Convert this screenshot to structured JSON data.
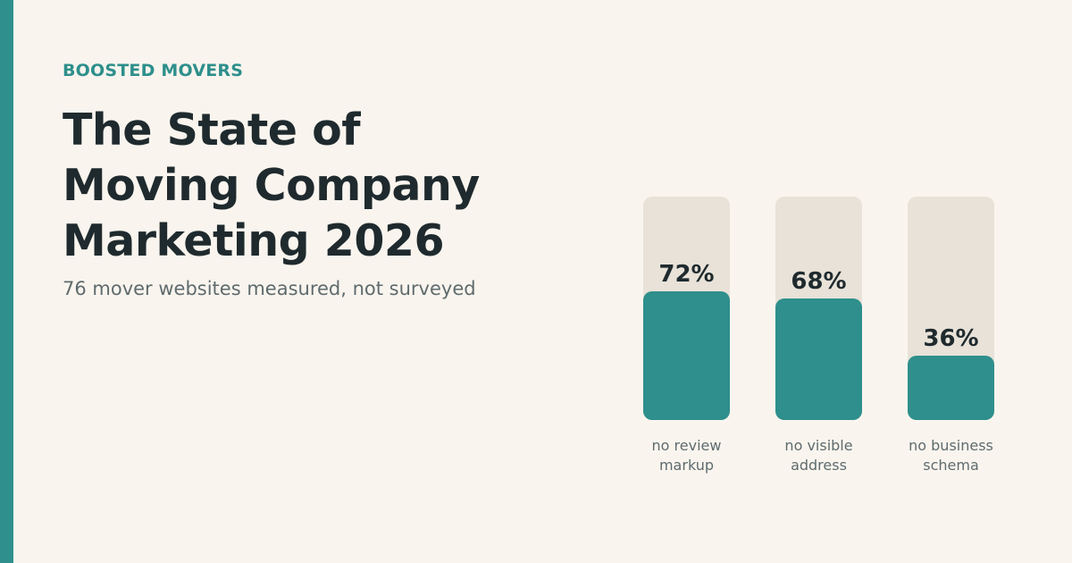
{
  "brand": "BOOSTED MOVERS",
  "title_lines": [
    "The State of",
    "Moving Company",
    "Marketing 2026"
  ],
  "subtitle": "76 mover websites measured, not surveyed",
  "colors": {
    "accent": "#2e8f8c",
    "track": "#e8e2d8",
    "background": "#f9f5ee",
    "text_dark": "#1f2a2e",
    "text_muted": "#5f6b6e"
  },
  "chart_data": {
    "type": "bar",
    "categories": [
      [
        "no review",
        "markup"
      ],
      [
        "no visible",
        "address"
      ],
      [
        "no business",
        "schema"
      ]
    ],
    "values": [
      72,
      68,
      36
    ],
    "value_labels": [
      "72%",
      "68%",
      "36%"
    ],
    "unit": "%",
    "ylim": [
      0,
      125
    ],
    "title": "",
    "xlabel": "",
    "ylabel": "",
    "grid": false,
    "legend": "none"
  }
}
